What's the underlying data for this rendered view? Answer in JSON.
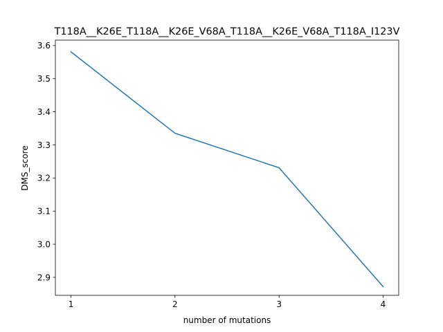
{
  "chart_data": {
    "type": "line",
    "title": "T118A__K26E_T118A__K26E_V68A_T118A__K26E_V68A_T118A_I123V",
    "xlabel": "number of mutations",
    "ylabel": "DMS_score",
    "x": [
      1,
      2,
      3,
      4
    ],
    "series": [
      {
        "values": [
          3.581,
          3.335,
          3.231,
          2.872
        ],
        "color": "#1f77b4"
      }
    ],
    "xticks": [
      1,
      2,
      3,
      4
    ],
    "yticks": [
      2.9,
      3.0,
      3.1,
      3.2,
      3.3,
      3.4,
      3.5,
      3.6
    ],
    "ytick_labels": [
      "2.9",
      "3.0",
      "3.1",
      "3.2",
      "3.3",
      "3.4",
      "3.5",
      "3.6"
    ],
    "xlim": [
      0.85,
      4.15
    ],
    "ylim": [
      2.8456,
      3.6164
    ],
    "grid": false,
    "legend": "none"
  }
}
